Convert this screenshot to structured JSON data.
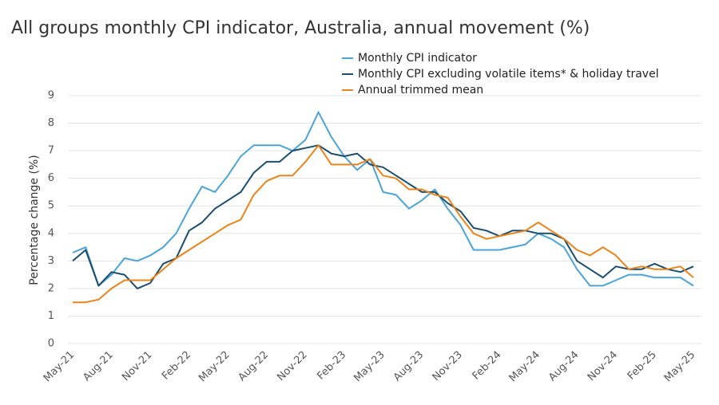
{
  "chart_data": {
    "type": "line",
    "title": "All groups monthly CPI indicator, Australia, annual movement (%)",
    "y_label": "Percentage change (%)",
    "categories": [
      "May-21",
      null,
      null,
      "Aug-21",
      null,
      null,
      "Nov-21",
      null,
      null,
      "Feb-22",
      null,
      null,
      "May-22",
      null,
      null,
      "Aug-22",
      null,
      null,
      "Nov-22",
      null,
      null,
      "Feb-23",
      null,
      null,
      "May-23",
      null,
      null,
      "Aug-23",
      null,
      null,
      "Nov-23",
      null,
      null,
      "Feb-24",
      null,
      null,
      "May-24",
      null,
      null,
      "Aug-24",
      null,
      null,
      "Nov-24",
      null,
      null,
      "Feb-25",
      null,
      null,
      "May-25"
    ],
    "series": [
      {
        "name": "Monthly CPI indicator",
        "color": "#4ba3d8",
        "values": [
          3.3,
          3.5,
          2.1,
          2.5,
          3.1,
          3.0,
          3.2,
          3.5,
          4.0,
          4.9,
          5.7,
          5.5,
          6.1,
          6.8,
          7.2,
          7.2,
          7.2,
          7.0,
          7.4,
          8.4,
          7.5,
          6.8,
          6.3,
          6.7,
          5.5,
          5.4,
          4.9,
          5.2,
          5.6,
          4.9,
          4.3,
          3.4,
          3.4,
          3.4,
          3.5,
          3.6,
          4.0,
          3.8,
          3.5,
          2.7,
          2.1,
          2.1,
          2.3,
          2.5,
          2.5,
          2.4,
          2.4,
          2.4,
          2.1
        ]
      },
      {
        "name": "Monthly CPI excluding volatile items* & holiday travel",
        "color": "#1a4d6e",
        "values": [
          3.0,
          3.4,
          2.1,
          2.6,
          2.5,
          2.0,
          2.2,
          2.9,
          3.1,
          4.1,
          4.4,
          4.9,
          5.2,
          5.5,
          6.2,
          6.6,
          6.6,
          7.0,
          7.1,
          7.2,
          6.9,
          6.8,
          6.9,
          6.5,
          6.4,
          6.1,
          5.8,
          5.5,
          5.5,
          5.1,
          4.8,
          4.2,
          4.1,
          3.9,
          4.1,
          4.1,
          4.0,
          4.0,
          3.8,
          3.0,
          2.7,
          2.4,
          2.8,
          2.7,
          2.7,
          2.9,
          2.7,
          2.6,
          2.8
        ]
      },
      {
        "name": "Annual trimmed mean",
        "color": "#e8841a",
        "values": [
          1.5,
          1.5,
          1.6,
          2.0,
          2.3,
          2.3,
          2.3,
          2.7,
          3.1,
          3.4,
          3.7,
          4.0,
          4.3,
          4.5,
          5.4,
          5.9,
          6.1,
          6.1,
          6.6,
          7.2,
          6.5,
          6.5,
          6.5,
          6.7,
          6.1,
          6.0,
          5.6,
          5.6,
          5.4,
          5.3,
          4.6,
          4.0,
          3.8,
          3.9,
          4.0,
          4.1,
          4.4,
          4.1,
          3.8,
          3.4,
          3.2,
          3.5,
          3.2,
          2.7,
          2.8,
          2.7,
          2.7,
          2.8,
          2.4
        ]
      }
    ],
    "ylim": [
      0,
      9
    ],
    "yticks": [
      0,
      1,
      2,
      3,
      4,
      5,
      6,
      7,
      8,
      9
    ],
    "grid": true
  }
}
